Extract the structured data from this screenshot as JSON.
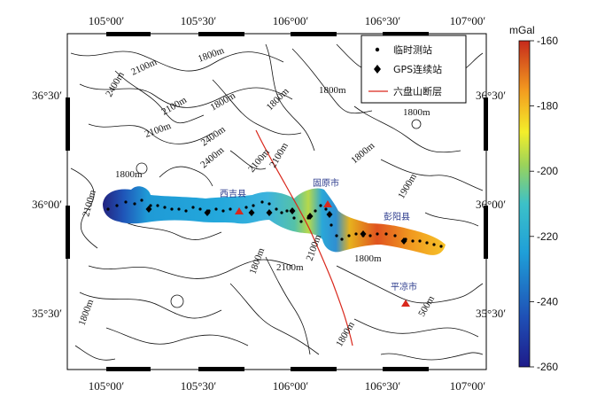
{
  "map": {
    "lon_ticks": [
      "105°00′",
      "105°30′",
      "106°00′",
      "106°30′",
      "107°00′"
    ],
    "lat_ticks": [
      "36°30′",
      "36°00′",
      "35°30′"
    ],
    "contour_labels": [
      "1800m",
      "2100m",
      "1800m",
      "2400m",
      "2100m",
      "2400m",
      "1800m",
      "1800m",
      "2100m",
      "1800m",
      "2400m",
      "2100m",
      "1800m",
      "1900m",
      "1800m",
      "2100m",
      "1800m",
      "2100m",
      "1800m",
      "1800m",
      "2100m",
      "2100m",
      "1800m",
      "500m",
      "1800m"
    ],
    "cities": [
      {
        "name": "西吉县"
      },
      {
        "name": "固原市"
      },
      {
        "name": "彭阳县"
      },
      {
        "name": "平凉市"
      }
    ]
  },
  "legend": {
    "items": [
      {
        "label": "临时测站",
        "symbol": "dot"
      },
      {
        "label": "GPS连续站",
        "symbol": "diamond"
      },
      {
        "label": "六盘山断层",
        "symbol": "red-line"
      }
    ]
  },
  "colorbar": {
    "unit": "mGal",
    "ticks": [
      "-160",
      "-180",
      "-200",
      "-220",
      "-240",
      "-260"
    ],
    "min": -260,
    "max": -160
  },
  "colors": {
    "fault": "#d9281c",
    "city_triangle": "#d9281c",
    "text_blue": "#2b3a8c"
  }
}
